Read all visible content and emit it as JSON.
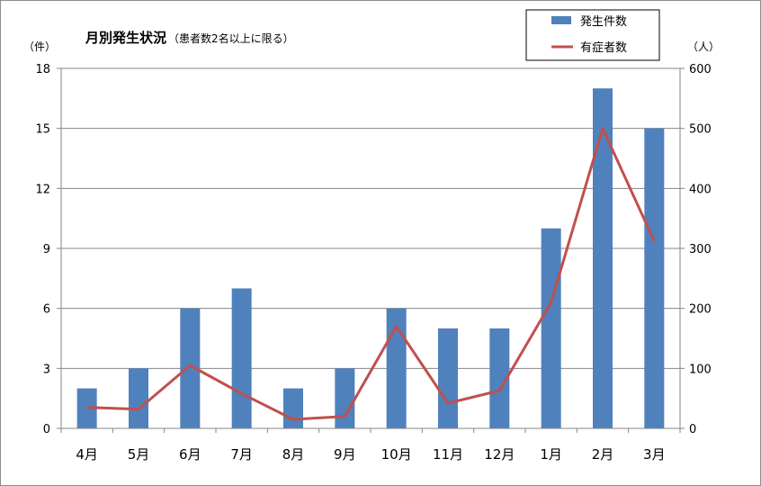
{
  "chart_data": {
    "type": "bar",
    "title": "月別発生状況",
    "subtitle": "（患者数2名以上に限る）",
    "categories": [
      "4月",
      "5月",
      "6月",
      "7月",
      "8月",
      "9月",
      "10月",
      "11月",
      "12月",
      "1月",
      "2月",
      "3月"
    ],
    "series": [
      {
        "name": "発生件数",
        "type": "bar",
        "axis": "left",
        "color": "#4f81bd",
        "values": [
          2,
          3,
          6,
          7,
          2,
          3,
          6,
          5,
          5,
          10,
          17,
          15
        ]
      },
      {
        "name": "有症者数",
        "type": "line",
        "axis": "right",
        "color": "#c0504d",
        "values": [
          35,
          32,
          105,
          58,
          15,
          20,
          170,
          42,
          63,
          210,
          500,
          312
        ]
      }
    ],
    "y_left": {
      "unit": "（件）",
      "ylim": [
        0,
        18
      ],
      "ticks": [
        "0",
        "3",
        "6",
        "9",
        "12",
        "15",
        "18"
      ]
    },
    "y_right": {
      "unit": "（人）",
      "ylim": [
        0,
        600
      ],
      "ticks": [
        "0",
        "100",
        "200",
        "300",
        "400",
        "500",
        "600"
      ]
    },
    "grid": true,
    "legend": "top-right"
  }
}
